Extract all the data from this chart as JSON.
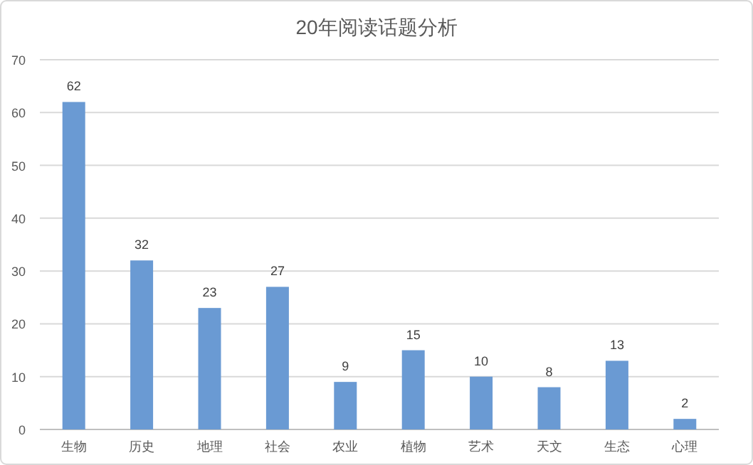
{
  "chart_data": {
    "type": "bar",
    "title": "20年阅读话题分析",
    "categories": [
      "生物",
      "历史",
      "地理",
      "社会",
      "农业",
      "植物",
      "艺术",
      "天文",
      "生态",
      "心理"
    ],
    "values": [
      62,
      32,
      23,
      27,
      9,
      15,
      10,
      8,
      13,
      2
    ],
    "color": "#6a9ad3",
    "ylim": [
      0,
      70
    ],
    "yticks": [
      0,
      10,
      20,
      30,
      40,
      50,
      60,
      70
    ],
    "grid": "y",
    "data_labels": true
  }
}
